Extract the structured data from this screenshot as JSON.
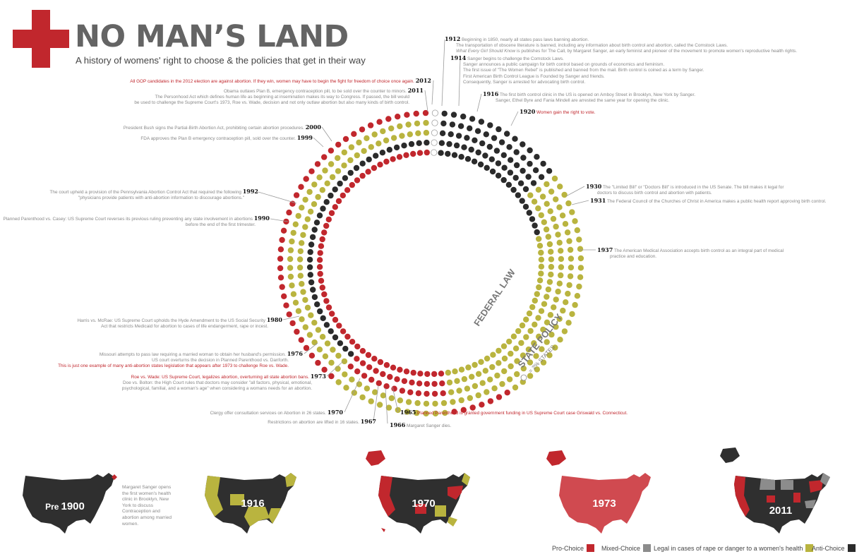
{
  "header": {
    "title": "NO MAN’S LAND",
    "subtitle": "A history of womens' right to choose & the policies that get in their way"
  },
  "colors": {
    "pro_choice": "#c1272d",
    "mixed_choice": "#8c8c8c",
    "legal_rape": "#b9b43f",
    "anti_choice": "#2b2b2b",
    "empty": "#ffffff"
  },
  "ring_labels": {
    "federal": "FEDERAL LAW",
    "state": "STATE POLICY",
    "state_key": "= 2% STATES"
  },
  "events": {
    "e1912": {
      "year": "1912",
      "l1": "Beginning in 1850, nearly all states pass laws banning abortion.",
      "l2": "The transportation of obscene literature is banned, including any information about birth control and abortion, called the Comstock Laws.",
      "l3a": "What Every Girl Should Know",
      "l3b": " is publishes for The Call, by Margaret Sanger, an early feminist and pioneer of the movement to promote women's reproductive health rights."
    },
    "e1914": {
      "year": "1914",
      "l1": "Sanger begins to challenge the Comstock Laws.",
      "l2": "Sanger announces a public campaign for birth control based on grounds of economics and feminism.",
      "l3": "The first issue of \"The Women Rebel\" is published and banned from the mail. Birth control is coined as a term by Sanger.",
      "l4": "First American Birth Control League is Founded by Sanger and friends.",
      "l5": "Consequently, Sanger is arrested for advocating birth control."
    },
    "e1916": {
      "year": "1916",
      "l1": "The first birth control clinic in the US is opened on Amboy Street in Brooklyn, New York by Sanger.",
      "l2": "Sanger, Ethel Byre and Fania Mindell are arrested the same year for opening the clinic."
    },
    "e1920": {
      "year": "1920",
      "l1": "Women gain the right to vote."
    },
    "e1930": {
      "year": "1930",
      "l1": "The \"Limited Bill\" or \"Doctors Bill\" is introduced in the US Senate. The bill makes it legal for",
      "l2": "doctors to discuss birth control and abortion with patients."
    },
    "e1931": {
      "year": "1931",
      "l1": "The Federal Council of the Churches of Christ in America makes a public health report approving birth control."
    },
    "e1937": {
      "year": "1937",
      "l1": "The American Medical Association accepts birth control as an integral part of medical",
      "l2": "practice and education."
    },
    "e1965": {
      "year": "1965",
      "l1": "Planned Parenthood is granted government funding in US Supreme Court case Griswald vs. Connecticut."
    },
    "e1966": {
      "year": "1966",
      "l1": "Margaret Sanger dies."
    },
    "e1967": {
      "year": "1967",
      "l1": "Restrictions on abortion are lifted in 16 states."
    },
    "e1970": {
      "year": "1970",
      "l1": "Clergy offer consultation services on Abortion in 26 states."
    },
    "e1973": {
      "year": "1973",
      "l1": "Roe vs. Wade: US Supreme Court, legalizes abortion, overturning all state abortion bans.",
      "l2": "Doe vs. Bolton: the High Court rules that doctors may consider \"all factors, physical, emotional,",
      "l3": "psychological, familial, and a woman's age\" when considering a womans needs for an abortion."
    },
    "e1976": {
      "year": "1976",
      "l1": "Missouri attempts to pass law requiring a married woman to obtain her husband's permission.",
      "l2": "US court overturns the decision in Planned Parenthood vs. Danforth.",
      "l3": "This is just one example of many anti-abortion states legislation that appears after 1973 to challenge Roe vs. Wade."
    },
    "e1980": {
      "year": "1980",
      "l1": "Harris vs. McRae: US Supreme Court upholds the Hyde Amendment to the US Social Security",
      "l2": "Act that restricts Medicaid for abortion to cases of life endangerment, rape or incest."
    },
    "e1990": {
      "year": "1990",
      "l1": "Planned Parenthood vs. Casey: US Supreme Court reverses its previous ruling preventing any state involvement in abortions",
      "l2": "before the end of the first trimester."
    },
    "e1992": {
      "year": "1992",
      "l1": "The court upheld a provision of the Pennsylvania Abortion Control Act that required the following",
      "l2": "\"physicians provide patients with anti-abortion information to discourage abortions.\""
    },
    "e1999": {
      "year": "1999",
      "l1": "FDA approves the Plan B emergency contraception pill, sold over the counter."
    },
    "e2000": {
      "year": "2000",
      "l1": "President Bush signs the Partial-Birth Abortion Act, prohibiting certain abortion procedures."
    },
    "e2011": {
      "year": "2011",
      "l1": "Obama outlaws Plan B, emergency contraception pill, to be sold over the counter to minors.",
      "l2": "The Personhood Act which defines human life as beginning at insemination makes its  way to Congress. If passed, the bill would",
      "l3": "be used to challenge the Supreme Court's 1973, Roe vs. Wade, decision and not only outlaw abortion but also many kinds of birth control."
    },
    "e2012": {
      "year": "2012",
      "l1": "All GOP candidates in the 2012 election are against abortion. If they win, women may have to begin the fight for freedom of choice once again."
    }
  },
  "maps": {
    "m1900": {
      "label": "Pre 1900",
      "label_pre": "Pre",
      "label_year": "1900",
      "note": "Margaret Sanger opens the first women's health clinic in Brooklyn, New York to discuss Contraception and abortion among married women."
    },
    "m1916": {
      "label": "1916"
    },
    "m1970": {
      "label": "1970"
    },
    "m1973": {
      "label": "1973"
    },
    "m2011": {
      "label": "2011"
    }
  },
  "legend": [
    {
      "label": "Pro-Choice",
      "color": "#c1272d"
    },
    {
      "label": "Mixed-Choice",
      "color": "#8c8c8c"
    },
    {
      "label": "Legal in cases of rape or danger to a women's health",
      "color": "#b9b43f"
    },
    {
      "label": "Anti-Choice",
      "color": "#2b2b2b"
    }
  ]
}
